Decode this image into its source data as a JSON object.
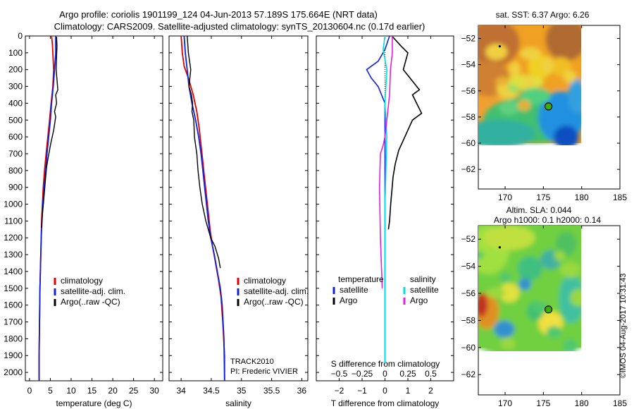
{
  "header": {
    "line1": "Argo profile: coriolis 1901199_124 04-Jun-2013 57.189S 175.664E (NRT data)",
    "line2": "Climatology: CARS2009. Satellite-adjusted climatology: synTS_20130604.nc (0.17d earlier)"
  },
  "colors": {
    "climatology": "#e00000",
    "satellite": "#1020e0",
    "argo": "#000000",
    "cyan": "#00e0e0",
    "magenta": "#e020e0",
    "marker_fill": "#38b000"
  },
  "chart_data": [
    {
      "type": "line",
      "id": "temperature",
      "xlabel": "temperature (deg C)",
      "xlim": [
        -1,
        32
      ],
      "ylim": [
        2050,
        0
      ],
      "xticks": [
        0,
        5,
        10,
        15,
        20,
        25,
        30
      ],
      "yticks": [
        0,
        100,
        200,
        300,
        400,
        500,
        600,
        700,
        800,
        900,
        1000,
        1100,
        1200,
        1300,
        1400,
        1500,
        1600,
        1700,
        1800,
        1900,
        2000
      ],
      "legend": [
        "climatology",
        "satellite-adj. clim.",
        "Argo(..raw -QC)"
      ],
      "series": [
        {
          "name": "climatology",
          "color": "#e00000",
          "x": [
            5.3,
            5.5,
            5.6,
            5.8,
            5.6,
            5.2,
            4.8,
            4.4,
            4.0,
            3.6,
            3.3,
            3.1,
            2.9,
            2.8,
            2.7,
            2.6,
            2.5,
            2.4,
            2.3,
            2.3
          ],
          "y": [
            0,
            50,
            100,
            200,
            300,
            400,
            500,
            600,
            700,
            800,
            900,
            1000,
            1100,
            1200,
            1300,
            1400,
            1500,
            1700,
            1900,
            2050
          ]
        },
        {
          "name": "satellite-adj. clim.",
          "color": "#1020e0",
          "x": [
            6.3,
            6.3,
            6.0,
            5.7,
            5.3,
            5.0,
            4.6,
            4.2,
            3.9,
            3.5,
            3.2,
            3.0,
            2.8,
            2.7,
            2.6,
            2.5,
            2.4,
            2.3,
            2.3
          ],
          "y": [
            0,
            100,
            200,
            300,
            400,
            500,
            600,
            700,
            800,
            900,
            1000,
            1100,
            1200,
            1300,
            1400,
            1500,
            1700,
            1900,
            2050
          ]
        },
        {
          "name": "Argo(..raw -QC)",
          "color": "#000000",
          "x": [
            6.5,
            6.6,
            6.5,
            6.4,
            6.8,
            6.3,
            6.5,
            6.0,
            6.3,
            5.8,
            5.1,
            4.5,
            4.1,
            3.8,
            3.6,
            3.4,
            3.1,
            2.9
          ],
          "y": [
            5,
            60,
            120,
            200,
            320,
            350,
            400,
            450,
            480,
            560,
            640,
            720,
            780,
            860,
            920,
            980,
            1060,
            1140
          ]
        }
      ]
    },
    {
      "type": "line",
      "id": "salinity",
      "xlabel": "salinity",
      "xlim": [
        33.8,
        36.1
      ],
      "ylim": [
        2050,
        0
      ],
      "xticks": [
        34,
        34.5,
        35,
        35.5,
        36
      ],
      "legend": [
        "climatology",
        "satellite-adj. clim.",
        "Argo(..raw -QC)"
      ],
      "annotations": [
        "TRACK2010",
        "PI: Frederic VIVIER"
      ],
      "series": [
        {
          "name": "climatology",
          "color": "#e00000",
          "x": [
            34.0,
            34.02,
            34.05,
            34.12,
            34.2,
            34.26,
            34.3,
            34.33,
            34.36,
            34.39,
            34.42,
            34.45,
            34.48,
            34.52,
            34.57,
            34.62,
            34.66,
            34.69,
            34.72,
            34.72
          ],
          "y": [
            0,
            100,
            180,
            250,
            350,
            450,
            550,
            650,
            750,
            850,
            950,
            1050,
            1150,
            1250,
            1350,
            1450,
            1550,
            1700,
            1900,
            2050
          ]
        },
        {
          "name": "satellite-adj. clim.",
          "color": "#1020e0",
          "x": [
            34.05,
            34.07,
            34.1,
            34.13,
            34.18,
            34.24,
            34.29,
            34.33,
            34.36,
            34.39,
            34.42,
            34.45,
            34.49,
            34.55,
            34.6,
            34.65,
            34.68,
            34.71,
            34.72
          ],
          "y": [
            0,
            100,
            200,
            300,
            400,
            500,
            600,
            700,
            800,
            900,
            1000,
            1100,
            1200,
            1300,
            1400,
            1500,
            1600,
            1800,
            2050
          ]
        },
        {
          "name": "Argo(..raw -QC)",
          "color": "#000000",
          "x": [
            34.1,
            34.11,
            34.12,
            34.16,
            34.13,
            34.17,
            34.19,
            34.18,
            34.21,
            34.22,
            34.26,
            34.28,
            34.31,
            34.35,
            34.41,
            34.49,
            34.56,
            34.62,
            34.65
          ],
          "y": [
            0,
            50,
            100,
            200,
            300,
            350,
            400,
            450,
            500,
            600,
            700,
            800,
            900,
            1000,
            1100,
            1200,
            1250,
            1320,
            1380
          ]
        }
      ]
    },
    {
      "type": "line",
      "id": "difference",
      "xlabel_top": "S difference from climatology",
      "xlabel": "T difference from climatology",
      "xlim": [
        -3,
        3
      ],
      "ylim": [
        2050,
        0
      ],
      "xticks_T": [
        -2,
        -1,
        0,
        1,
        2
      ],
      "xticks_S": [
        -0.5,
        -0.25,
        0,
        0.25,
        0.5
      ],
      "legend_titles": [
        "temperature",
        "salinity"
      ],
      "legend_temperature": [
        "satellite",
        "Argo"
      ],
      "legend_salinity": [
        "satellite",
        "Argo"
      ],
      "series": [
        {
          "name": "temperature satellite",
          "color": "#1020e0",
          "x": [
            0.2,
            0.0,
            -0.3,
            -0.8,
            -0.6,
            -0.3,
            0.0,
            0.0,
            0.0,
            0.0
          ],
          "y": [
            0,
            80,
            150,
            200,
            250,
            300,
            400,
            800,
            1500,
            1950
          ]
        },
        {
          "name": "temperature Argo",
          "color": "#000000",
          "x": [
            0.3,
            0.7,
            1.0,
            0.8,
            1.5,
            1.2,
            1.6,
            1.2,
            1.0,
            0.8,
            0.6,
            0.45,
            0.35,
            0.3,
            0.25,
            0.2,
            0.15
          ],
          "y": [
            0,
            60,
            100,
            200,
            320,
            350,
            460,
            500,
            560,
            620,
            680,
            760,
            840,
            920,
            1000,
            1100,
            1150
          ]
        },
        {
          "name": "salinity satellite",
          "color": "#00e0e0",
          "x": [
            0.0,
            -0.02,
            0.02,
            0.0,
            0.02,
            0.0,
            0.0
          ],
          "y": [
            0,
            80,
            200,
            400,
            600,
            1000,
            1950
          ]
        },
        {
          "name": "salinity Argo",
          "color": "#e020e0",
          "x": [
            0.08,
            0.08,
            0.06,
            0.05,
            0.02,
            0.0,
            -0.02,
            -0.05,
            -0.06,
            -0.05,
            -0.03
          ],
          "y": [
            0,
            100,
            200,
            350,
            500,
            600,
            650,
            700,
            900,
            1200,
            1500
          ]
        }
      ]
    },
    {
      "type": "heatmap",
      "id": "sst-map",
      "title": "sat. SST: 6.37 Argo: 6.26",
      "xlim": [
        166.5,
        185
      ],
      "ylim": [
        -63.5,
        -51
      ],
      "xticks": [
        170,
        175,
        180,
        185
      ],
      "yticks": [
        -52,
        -54,
        -56,
        -58,
        -60,
        -62
      ],
      "data_extent": {
        "lon": [
          166.5,
          180
        ],
        "lat": [
          -60,
          -51
        ]
      },
      "argo_position": {
        "lon": 175.664,
        "lat": -57.189
      }
    },
    {
      "type": "heatmap",
      "id": "sla-map",
      "title": "Altim. SLA: 0.044",
      "subtitle": "Argo h1000: 0.1 h2000: 0.14",
      "xlim": [
        166.5,
        185
      ],
      "ylim": [
        -63.5,
        -51
      ],
      "xticks": [
        170,
        175,
        180,
        185
      ],
      "yticks": [
        -52,
        -54,
        -56,
        -58,
        -60,
        -62
      ],
      "data_extent": {
        "lon": [
          166.5,
          180
        ],
        "lat": [
          -60,
          -51
        ]
      },
      "argo_position": {
        "lon": 175.664,
        "lat": -57.189
      }
    }
  ],
  "footer": {
    "stamp": "©IMOS 04-Aug-2017 10:31:43"
  }
}
